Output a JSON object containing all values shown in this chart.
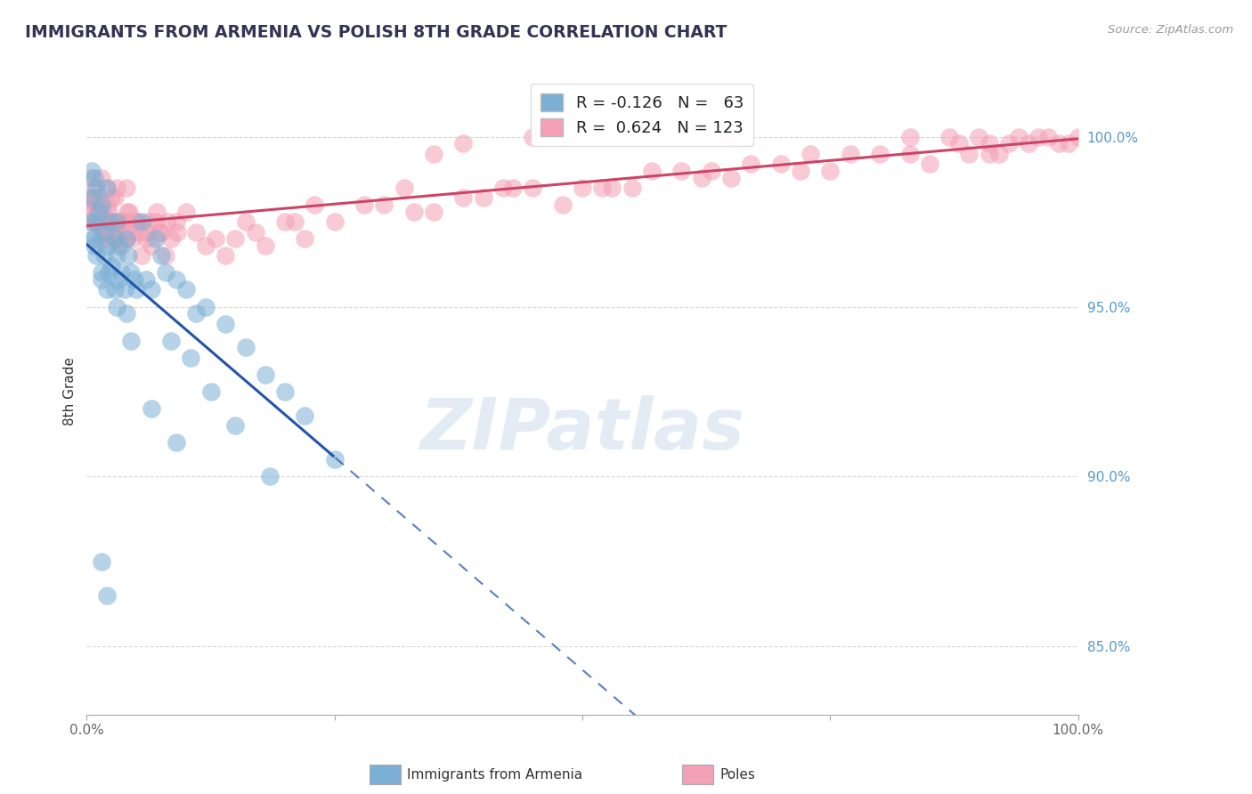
{
  "title": "IMMIGRANTS FROM ARMENIA VS POLISH 8TH GRADE CORRELATION CHART",
  "source": "Source: ZipAtlas.com",
  "ylabel": "8th Grade",
  "y_ticks": [
    85.0,
    90.0,
    95.0,
    100.0
  ],
  "x_lim": [
    0.0,
    100.0
  ],
  "y_lim": [
    83.0,
    102.0
  ],
  "blue_color": "#7bafd4",
  "pink_color": "#f4a0b5",
  "blue_line_color": "#2255aa",
  "pink_line_color": "#cc4466",
  "blue_scatter_x": [
    0.3,
    0.5,
    0.5,
    0.8,
    0.8,
    1.0,
    1.0,
    1.2,
    1.5,
    1.5,
    1.8,
    1.8,
    2.0,
    2.0,
    2.2,
    2.2,
    2.5,
    2.8,
    3.0,
    3.0,
    3.2,
    3.5,
    3.8,
    4.0,
    4.2,
    4.5,
    4.8,
    5.0,
    5.5,
    6.0,
    6.5,
    7.0,
    7.5,
    8.0,
    9.0,
    10.0,
    11.0,
    12.0,
    14.0,
    16.0,
    18.0,
    20.0,
    22.0,
    25.0,
    1.5,
    2.0,
    2.8,
    3.2,
    4.5,
    6.5,
    9.0,
    1.5,
    2.0,
    10.5,
    12.5,
    18.5,
    3.0,
    4.0,
    8.5,
    15.0,
    0.6,
    0.8,
    1.0
  ],
  "blue_scatter_y": [
    97.5,
    98.2,
    99.0,
    96.8,
    97.0,
    98.5,
    96.5,
    97.8,
    96.0,
    95.8,
    97.2,
    96.5,
    95.5,
    96.8,
    96.0,
    97.5,
    96.2,
    97.0,
    95.0,
    97.5,
    96.8,
    96.0,
    95.5,
    97.0,
    96.5,
    96.0,
    95.8,
    95.5,
    97.5,
    95.8,
    95.5,
    97.0,
    96.5,
    96.0,
    95.8,
    95.5,
    94.8,
    95.0,
    94.5,
    93.8,
    93.0,
    92.5,
    91.8,
    90.5,
    98.0,
    98.5,
    95.5,
    95.8,
    94.0,
    92.0,
    91.0,
    87.5,
    86.5,
    93.5,
    92.5,
    90.0,
    96.5,
    94.8,
    94.0,
    91.5,
    97.0,
    98.8,
    97.5
  ],
  "pink_scatter_x": [
    0.3,
    0.4,
    0.5,
    0.5,
    0.6,
    0.7,
    0.8,
    0.8,
    0.9,
    1.0,
    1.0,
    1.1,
    1.2,
    1.3,
    1.5,
    1.5,
    1.6,
    1.7,
    1.8,
    1.8,
    2.0,
    2.0,
    2.1,
    2.2,
    2.3,
    2.5,
    2.5,
    2.6,
    2.7,
    2.8,
    3.0,
    3.0,
    3.1,
    3.2,
    3.3,
    3.5,
    3.6,
    3.7,
    3.8,
    4.0,
    4.0,
    4.1,
    4.3,
    4.5,
    4.6,
    5.0,
    5.1,
    5.3,
    5.5,
    6.0,
    6.1,
    6.3,
    6.5,
    7.0,
    7.1,
    7.3,
    7.5,
    8.0,
    8.1,
    8.5,
    9.0,
    9.1,
    10.0,
    11.0,
    12.0,
    13.0,
    14.0,
    15.0,
    16.0,
    17.0,
    18.0,
    20.0,
    21.0,
    22.0,
    23.0,
    25.0,
    28.0,
    30.0,
    32.0,
    33.0,
    35.0,
    35.0,
    38.0,
    38.0,
    40.0,
    42.0,
    43.0,
    45.0,
    45.0,
    48.0,
    50.0,
    52.0,
    53.0,
    55.0,
    57.0,
    60.0,
    62.0,
    63.0,
    65.0,
    65.0,
    67.0,
    70.0,
    72.0,
    73.0,
    75.0,
    77.0,
    80.0,
    83.0,
    83.0,
    85.0,
    87.0,
    88.0,
    89.0,
    90.0,
    91.0,
    91.0,
    92.0,
    93.0,
    94.0,
    95.0,
    96.0,
    97.0,
    98.0,
    99.0,
    100.0
  ],
  "pink_scatter_y": [
    97.8,
    98.0,
    98.2,
    98.8,
    97.5,
    97.5,
    98.5,
    98.2,
    98.0,
    98.0,
    97.5,
    98.2,
    97.5,
    97.8,
    98.8,
    97.0,
    97.8,
    97.2,
    97.2,
    97.5,
    98.5,
    97.0,
    98.0,
    97.8,
    97.2,
    97.0,
    98.2,
    97.5,
    97.5,
    98.2,
    97.5,
    98.5,
    97.2,
    97.0,
    97.0,
    96.8,
    97.5,
    97.5,
    97.5,
    97.0,
    98.5,
    97.8,
    97.8,
    97.2,
    97.0,
    97.5,
    97.5,
    97.2,
    96.5,
    97.0,
    97.2,
    97.5,
    96.8,
    97.5,
    97.8,
    97.2,
    97.2,
    96.5,
    97.5,
    97.0,
    97.5,
    97.2,
    97.8,
    97.2,
    96.8,
    97.0,
    96.5,
    97.0,
    97.5,
    97.2,
    96.8,
    97.5,
    97.5,
    97.0,
    98.0,
    97.5,
    98.0,
    98.0,
    98.5,
    97.8,
    97.8,
    99.5,
    98.2,
    99.8,
    98.2,
    98.5,
    98.5,
    98.5,
    100.0,
    98.0,
    98.5,
    98.5,
    98.5,
    98.5,
    99.0,
    99.0,
    98.8,
    99.0,
    98.8,
    100.0,
    99.2,
    99.2,
    99.0,
    99.5,
    99.0,
    99.5,
    99.5,
    99.5,
    100.0,
    99.2,
    100.0,
    99.8,
    99.5,
    100.0,
    99.8,
    99.5,
    99.5,
    99.8,
    100.0,
    99.8,
    100.0,
    100.0,
    99.8,
    99.8,
    100.0
  ]
}
